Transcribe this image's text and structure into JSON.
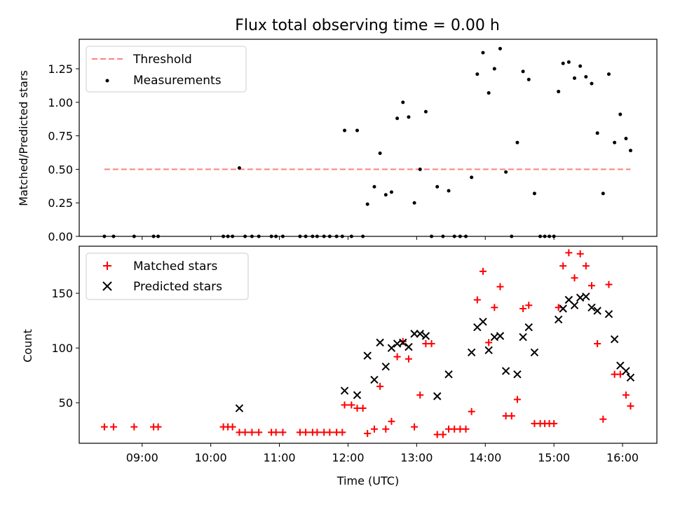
{
  "figure_title": "Flux total observing time = 0.00 h",
  "chart_data": [
    {
      "type": "scatter",
      "ylabel": "Matched/Predicted stars",
      "xlabel": "",
      "ylim": [
        0,
        1.47
      ],
      "xlim": [
        "08:05",
        "16:30"
      ],
      "x_ticks": [
        "09:00",
        "10:00",
        "11:00",
        "12:00",
        "13:00",
        "14:00",
        "15:00",
        "16:00"
      ],
      "y_ticks": [
        "0.00",
        "0.25",
        "0.50",
        "0.75",
        "1.00",
        "1.25"
      ],
      "y_tick_values": [
        0,
        0.25,
        0.5,
        0.75,
        1.0,
        1.25
      ],
      "show_x_tick_labels": false,
      "grid": false,
      "legend_position": "upper left",
      "threshold": {
        "name": "Threshold",
        "value": 0.5,
        "x_range": [
          "08:27",
          "16:07"
        ],
        "color": "#ff7f7f",
        "style": "dashed"
      },
      "series": [
        {
          "name": "Measurements",
          "marker": "dot",
          "color": "#000000",
          "points": [
            {
              "x": "08:27",
              "y": 0
            },
            {
              "x": "08:35",
              "y": 0
            },
            {
              "x": "08:53",
              "y": 0
            },
            {
              "x": "09:10",
              "y": 0
            },
            {
              "x": "09:14",
              "y": 0
            },
            {
              "x": "10:11",
              "y": 0
            },
            {
              "x": "10:15",
              "y": 0
            },
            {
              "x": "10:19",
              "y": 0
            },
            {
              "x": "10:25",
              "y": 0.51
            },
            {
              "x": "10:30",
              "y": 0
            },
            {
              "x": "10:36",
              "y": 0
            },
            {
              "x": "10:42",
              "y": 0
            },
            {
              "x": "10:53",
              "y": 0
            },
            {
              "x": "10:57",
              "y": 0
            },
            {
              "x": "11:03",
              "y": 0
            },
            {
              "x": "11:18",
              "y": 0
            },
            {
              "x": "11:23",
              "y": 0
            },
            {
              "x": "11:29",
              "y": 0
            },
            {
              "x": "11:33",
              "y": 0
            },
            {
              "x": "11:39",
              "y": 0
            },
            {
              "x": "11:44",
              "y": 0
            },
            {
              "x": "11:50",
              "y": 0
            },
            {
              "x": "11:55",
              "y": 0
            },
            {
              "x": "11:57",
              "y": 0.79
            },
            {
              "x": "12:03",
              "y": 0
            },
            {
              "x": "12:08",
              "y": 0.79
            },
            {
              "x": "12:13",
              "y": 0
            },
            {
              "x": "12:17",
              "y": 0.24
            },
            {
              "x": "12:23",
              "y": 0.37
            },
            {
              "x": "12:28",
              "y": 0.62
            },
            {
              "x": "12:33",
              "y": 0.31
            },
            {
              "x": "12:38",
              "y": 0.33
            },
            {
              "x": "12:43",
              "y": 0.88
            },
            {
              "x": "12:48",
              "y": 1.0
            },
            {
              "x": "12:53",
              "y": 0.89
            },
            {
              "x": "12:58",
              "y": 0.25
            },
            {
              "x": "13:03",
              "y": 0.5
            },
            {
              "x": "13:08",
              "y": 0.93
            },
            {
              "x": "13:13",
              "y": 0
            },
            {
              "x": "13:18",
              "y": 0.37
            },
            {
              "x": "13:23",
              "y": 0
            },
            {
              "x": "13:28",
              "y": 0.34
            },
            {
              "x": "13:33",
              "y": 0
            },
            {
              "x": "13:38",
              "y": 0
            },
            {
              "x": "13:43",
              "y": 0
            },
            {
              "x": "13:48",
              "y": 0.44
            },
            {
              "x": "13:53",
              "y": 1.21
            },
            {
              "x": "13:58",
              "y": 1.37
            },
            {
              "x": "14:03",
              "y": 1.07
            },
            {
              "x": "14:08",
              "y": 1.25
            },
            {
              "x": "14:13",
              "y": 1.4
            },
            {
              "x": "14:18",
              "y": 0.48
            },
            {
              "x": "14:23",
              "y": 0
            },
            {
              "x": "14:28",
              "y": 0.7
            },
            {
              "x": "14:33",
              "y": 1.23
            },
            {
              "x": "14:38",
              "y": 1.17
            },
            {
              "x": "14:43",
              "y": 0.32
            },
            {
              "x": "14:48",
              "y": 0
            },
            {
              "x": "14:52",
              "y": 0
            },
            {
              "x": "14:56",
              "y": 0
            },
            {
              "x": "15:00",
              "y": 0
            },
            {
              "x": "15:04",
              "y": 1.08
            },
            {
              "x": "15:08",
              "y": 1.29
            },
            {
              "x": "15:13",
              "y": 1.3
            },
            {
              "x": "15:18",
              "y": 1.18
            },
            {
              "x": "15:23",
              "y": 1.27
            },
            {
              "x": "15:28",
              "y": 1.19
            },
            {
              "x": "15:33",
              "y": 1.14
            },
            {
              "x": "15:38",
              "y": 0.77
            },
            {
              "x": "15:43",
              "y": 0.32
            },
            {
              "x": "15:48",
              "y": 1.21
            },
            {
              "x": "15:53",
              "y": 0.7
            },
            {
              "x": "15:58",
              "y": 0.91
            },
            {
              "x": "16:03",
              "y": 0.73
            },
            {
              "x": "16:07",
              "y": 0.64
            }
          ]
        }
      ]
    },
    {
      "type": "scatter",
      "ylabel": "Count",
      "xlabel": "Time (UTC)",
      "ylim": [
        13,
        193
      ],
      "xlim": [
        "08:05",
        "16:30"
      ],
      "x_ticks": [
        "09:00",
        "10:00",
        "11:00",
        "12:00",
        "13:00",
        "14:00",
        "15:00",
        "16:00"
      ],
      "y_ticks": [
        "50",
        "100",
        "150"
      ],
      "y_tick_values": [
        50,
        100,
        150
      ],
      "show_x_tick_labels": true,
      "grid": false,
      "legend_position": "upper left",
      "series": [
        {
          "name": "Matched stars",
          "marker": "plus",
          "color": "#ff0000",
          "points": [
            {
              "x": "08:27",
              "y": 28
            },
            {
              "x": "08:35",
              "y": 28
            },
            {
              "x": "08:53",
              "y": 28
            },
            {
              "x": "09:10",
              "y": 28
            },
            {
              "x": "09:14",
              "y": 28
            },
            {
              "x": "10:11",
              "y": 28
            },
            {
              "x": "10:15",
              "y": 28
            },
            {
              "x": "10:19",
              "y": 28
            },
            {
              "x": "10:25",
              "y": 23
            },
            {
              "x": "10:30",
              "y": 23
            },
            {
              "x": "10:36",
              "y": 23
            },
            {
              "x": "10:42",
              "y": 23
            },
            {
              "x": "10:53",
              "y": 23
            },
            {
              "x": "10:57",
              "y": 23
            },
            {
              "x": "11:03",
              "y": 23
            },
            {
              "x": "11:18",
              "y": 23
            },
            {
              "x": "11:23",
              "y": 23
            },
            {
              "x": "11:29",
              "y": 23
            },
            {
              "x": "11:33",
              "y": 23
            },
            {
              "x": "11:39",
              "y": 23
            },
            {
              "x": "11:44",
              "y": 23
            },
            {
              "x": "11:50",
              "y": 23
            },
            {
              "x": "11:55",
              "y": 23
            },
            {
              "x": "11:57",
              "y": 48
            },
            {
              "x": "12:03",
              "y": 48
            },
            {
              "x": "12:08",
              "y": 45
            },
            {
              "x": "12:13",
              "y": 45
            },
            {
              "x": "12:17",
              "y": 22
            },
            {
              "x": "12:23",
              "y": 26
            },
            {
              "x": "12:28",
              "y": 65
            },
            {
              "x": "12:33",
              "y": 26
            },
            {
              "x": "12:38",
              "y": 33
            },
            {
              "x": "12:43",
              "y": 92
            },
            {
              "x": "12:48",
              "y": 106
            },
            {
              "x": "12:53",
              "y": 90
            },
            {
              "x": "12:58",
              "y": 28
            },
            {
              "x": "13:03",
              "y": 57
            },
            {
              "x": "13:08",
              "y": 104
            },
            {
              "x": "13:13",
              "y": 104
            },
            {
              "x": "13:18",
              "y": 21
            },
            {
              "x": "13:23",
              "y": 21
            },
            {
              "x": "13:28",
              "y": 26
            },
            {
              "x": "13:33",
              "y": 26
            },
            {
              "x": "13:38",
              "y": 26
            },
            {
              "x": "13:43",
              "y": 26
            },
            {
              "x": "13:48",
              "y": 42
            },
            {
              "x": "13:53",
              "y": 144
            },
            {
              "x": "13:58",
              "y": 170
            },
            {
              "x": "14:03",
              "y": 105
            },
            {
              "x": "14:08",
              "y": 137
            },
            {
              "x": "14:13",
              "y": 156
            },
            {
              "x": "14:18",
              "y": 38
            },
            {
              "x": "14:23",
              "y": 38
            },
            {
              "x": "14:28",
              "y": 53
            },
            {
              "x": "14:33",
              "y": 136
            },
            {
              "x": "14:38",
              "y": 139
            },
            {
              "x": "14:43",
              "y": 31
            },
            {
              "x": "14:48",
              "y": 31
            },
            {
              "x": "14:52",
              "y": 31
            },
            {
              "x": "14:56",
              "y": 31
            },
            {
              "x": "15:00",
              "y": 31
            },
            {
              "x": "15:04",
              "y": 137
            },
            {
              "x": "15:08",
              "y": 175
            },
            {
              "x": "15:13",
              "y": 187
            },
            {
              "x": "15:18",
              "y": 164
            },
            {
              "x": "15:23",
              "y": 186
            },
            {
              "x": "15:28",
              "y": 175
            },
            {
              "x": "15:33",
              "y": 157
            },
            {
              "x": "15:38",
              "y": 104
            },
            {
              "x": "15:43",
              "y": 35
            },
            {
              "x": "15:48",
              "y": 158
            },
            {
              "x": "15:53",
              "y": 76
            },
            {
              "x": "15:58",
              "y": 76
            },
            {
              "x": "16:03",
              "y": 57
            },
            {
              "x": "16:07",
              "y": 47
            }
          ]
        },
        {
          "name": "Predicted stars",
          "marker": "x",
          "color": "#000000",
          "points": [
            {
              "x": "10:25",
              "y": 45
            },
            {
              "x": "11:57",
              "y": 61
            },
            {
              "x": "12:08",
              "y": 57
            },
            {
              "x": "12:17",
              "y": 93
            },
            {
              "x": "12:23",
              "y": 71
            },
            {
              "x": "12:28",
              "y": 105
            },
            {
              "x": "12:33",
              "y": 83
            },
            {
              "x": "12:38",
              "y": 100
            },
            {
              "x": "12:43",
              "y": 104
            },
            {
              "x": "12:48",
              "y": 105
            },
            {
              "x": "12:53",
              "y": 101
            },
            {
              "x": "12:58",
              "y": 113
            },
            {
              "x": "13:03",
              "y": 113
            },
            {
              "x": "13:08",
              "y": 111
            },
            {
              "x": "13:18",
              "y": 56
            },
            {
              "x": "13:28",
              "y": 76
            },
            {
              "x": "13:48",
              "y": 96
            },
            {
              "x": "13:53",
              "y": 119
            },
            {
              "x": "13:58",
              "y": 124
            },
            {
              "x": "14:03",
              "y": 98
            },
            {
              "x": "14:08",
              "y": 110
            },
            {
              "x": "14:13",
              "y": 111
            },
            {
              "x": "14:18",
              "y": 79
            },
            {
              "x": "14:28",
              "y": 76
            },
            {
              "x": "14:33",
              "y": 110
            },
            {
              "x": "14:38",
              "y": 119
            },
            {
              "x": "14:43",
              "y": 96
            },
            {
              "x": "15:04",
              "y": 126
            },
            {
              "x": "15:08",
              "y": 136
            },
            {
              "x": "15:13",
              "y": 144
            },
            {
              "x": "15:18",
              "y": 139
            },
            {
              "x": "15:23",
              "y": 146
            },
            {
              "x": "15:28",
              "y": 147
            },
            {
              "x": "15:33",
              "y": 137
            },
            {
              "x": "15:38",
              "y": 134
            },
            {
              "x": "15:48",
              "y": 131
            },
            {
              "x": "15:53",
              "y": 108
            },
            {
              "x": "15:58",
              "y": 84
            },
            {
              "x": "16:03",
              "y": 79
            },
            {
              "x": "16:07",
              "y": 73
            }
          ]
        }
      ]
    }
  ]
}
